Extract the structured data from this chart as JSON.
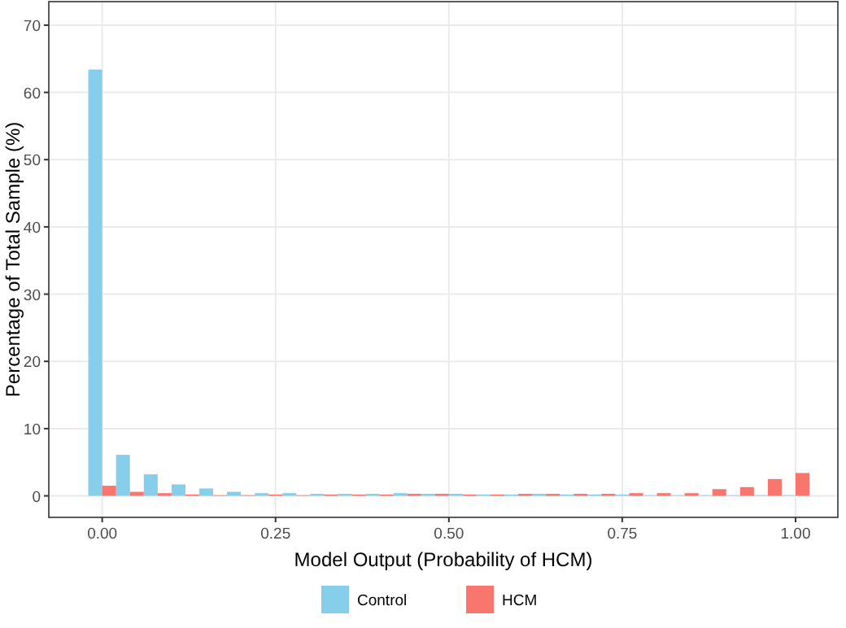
{
  "chart_data": {
    "type": "histogram",
    "xlabel": "Model Output (Probability of HCM)",
    "ylabel": "Percentage of Total Sample (%)",
    "bins": [
      -0.02,
      0.02,
      0.06,
      0.1,
      0.14,
      0.18,
      0.22,
      0.26,
      0.3,
      0.34,
      0.38,
      0.42,
      0.46,
      0.5,
      0.54,
      0.58,
      0.62,
      0.66,
      0.7,
      0.74,
      0.78,
      0.82,
      0.86,
      0.9,
      0.94,
      0.98,
      1.02
    ],
    "series": [
      {
        "name": "Control",
        "color": "#87ceeb",
        "values": [
          63.4,
          6.1,
          3.2,
          1.7,
          1.1,
          0.6,
          0.4,
          0.4,
          0.3,
          0.3,
          0.3,
          0.4,
          0.3,
          0.3,
          0.2,
          0.2,
          0.3,
          0.2,
          0.2,
          0.2,
          0.1,
          0.1,
          0.1,
          0.1,
          0.1,
          0.1
        ]
      },
      {
        "name": "HCM",
        "color": "#f8766d",
        "values": [
          1.5,
          0.6,
          0.4,
          0.2,
          0.1,
          0.1,
          0.2,
          0.1,
          0.2,
          0.2,
          0.2,
          0.3,
          0.3,
          0.2,
          0.2,
          0.3,
          0.3,
          0.3,
          0.3,
          0.4,
          0.4,
          0.4,
          1.0,
          1.3,
          2.5,
          3.4
        ]
      }
    ],
    "xlim": [
      -0.077,
      1.061
    ],
    "xticks": [
      {
        "value": 0,
        "label": "0.00"
      },
      0.25,
      {
        "value": 0.5,
        "label": "0.50"
      },
      0.75,
      {
        "value": 1,
        "label": "1.00"
      }
    ],
    "ylim": [
      -3.2,
      73.5
    ],
    "yticks": [
      0,
      10,
      20,
      30,
      40,
      50,
      60,
      70
    ],
    "grid": true,
    "legend": "bottom"
  }
}
